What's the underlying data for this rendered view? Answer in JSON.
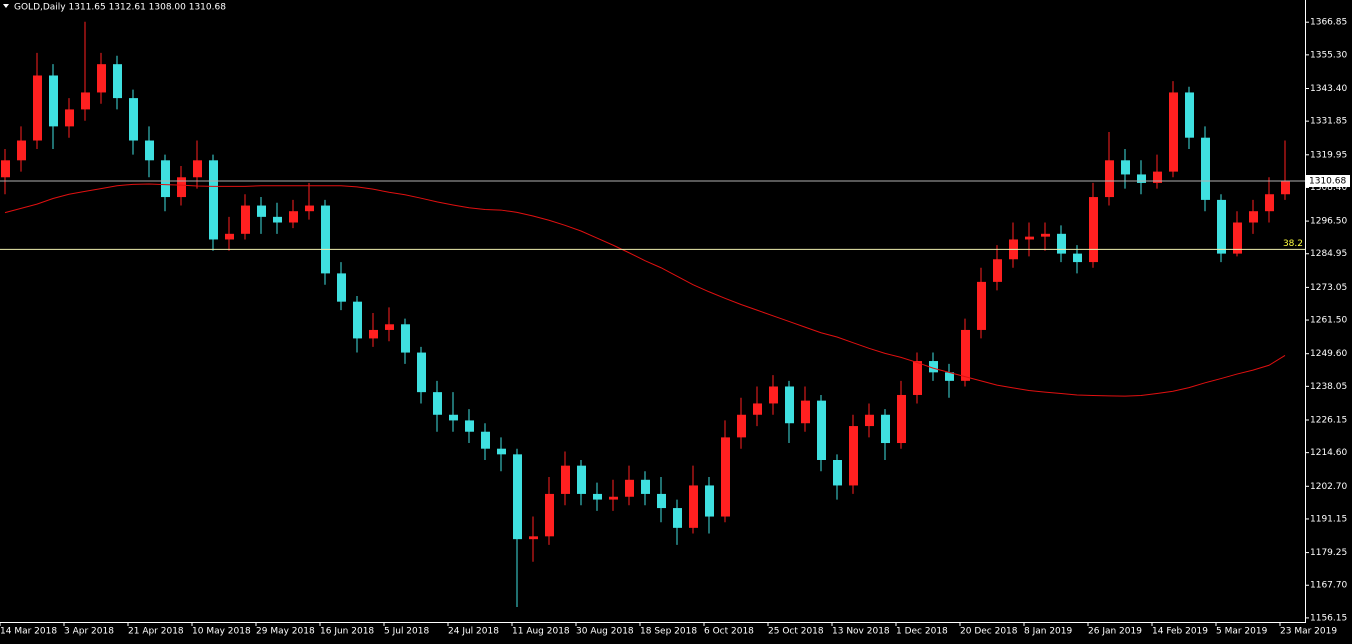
{
  "chart_data": {
    "type": "candlestick",
    "title": "GOLD,Daily  1311.65 1312.61 1308.00 1310.68",
    "categories": [
      "14 Mar 2018",
      null,
      null,
      null,
      "3 Apr 2018",
      null,
      null,
      null,
      "21 Apr 2018",
      null,
      null,
      null,
      "10 May 2018",
      null,
      null,
      null,
      "29 May 2018",
      null,
      null,
      null,
      "16 Jun 2018",
      null,
      null,
      null,
      "5 Jul 2018",
      null,
      null,
      null,
      "24 Jul 2018",
      null,
      null,
      null,
      "11 Aug 2018",
      null,
      null,
      null,
      "30 Aug 2018",
      null,
      null,
      null,
      "18 Sep 2018",
      null,
      null,
      null,
      "6 Oct 2018",
      null,
      null,
      null,
      "25 Oct 2018",
      null,
      null,
      null,
      "13 Nov 2018",
      null,
      null,
      null,
      "1 Dec 2018",
      null,
      null,
      null,
      "20 Dec 2018",
      null,
      null,
      null,
      "8 Jan 2019",
      null,
      null,
      null,
      "26 Jan 2019",
      null,
      null,
      null,
      "14 Feb 2019",
      null,
      null,
      null,
      "5 Mar 2019",
      null,
      null,
      null,
      "23 Mar 2019"
    ],
    "open": [
      1312,
      1318,
      1325,
      1348,
      1330,
      1336,
      1342,
      1352,
      1340,
      1325,
      1318,
      1305,
      1312,
      1318,
      1290,
      1292,
      1302,
      1298,
      1296,
      1300,
      1302,
      1278,
      1268,
      1255,
      1258,
      1260,
      1250,
      1236,
      1228,
      1226,
      1222,
      1216,
      1214,
      1184,
      1185,
      1200,
      1210,
      1200,
      1198,
      1199,
      1205,
      1200,
      1195,
      1188,
      1203,
      1192,
      1220,
      1228,
      1232,
      1238,
      1225,
      1233,
      1212,
      1203,
      1224,
      1228,
      1218,
      1235,
      1247,
      1243,
      1240,
      1258,
      1275,
      1283,
      1290,
      1291,
      1292,
      1285,
      1282,
      1305,
      1318,
      1313,
      1310,
      1314,
      1342,
      1326,
      1304,
      1285,
      1296,
      1300,
      1306
    ],
    "high": [
      1322,
      1330,
      1356,
      1352,
      1340,
      1367,
      1356,
      1355,
      1343,
      1330,
      1320,
      1316,
      1325,
      1320,
      1298,
      1306,
      1305,
      1303,
      1304,
      1310,
      1304,
      1282,
      1270,
      1264,
      1266,
      1262,
      1252,
      1240,
      1236,
      1230,
      1225,
      1220,
      1216,
      1192,
      1206,
      1215,
      1212,
      1204,
      1205,
      1210,
      1208,
      1206,
      1198,
      1210,
      1206,
      1226,
      1234,
      1238,
      1242,
      1240,
      1238,
      1235,
      1214,
      1228,
      1232,
      1230,
      1240,
      1250,
      1250,
      1246,
      1262,
      1280,
      1288,
      1296,
      1296,
      1296,
      1295,
      1288,
      1310,
      1328,
      1322,
      1318,
      1320,
      1346,
      1344,
      1330,
      1306,
      1300,
      1304,
      1312,
      1325
    ],
    "low": [
      1306,
      1314,
      1322,
      1322,
      1326,
      1332,
      1338,
      1336,
      1320,
      1312,
      1300,
      1302,
      1308,
      1286,
      1286,
      1290,
      1292,
      1292,
      1294,
      1297,
      1274,
      1265,
      1250,
      1252,
      1254,
      1246,
      1232,
      1222,
      1222,
      1218,
      1212,
      1208,
      1160,
      1176,
      1182,
      1196,
      1196,
      1194,
      1194,
      1196,
      1196,
      1190,
      1182,
      1186,
      1186,
      1190,
      1216,
      1224,
      1228,
      1218,
      1222,
      1208,
      1198,
      1200,
      1220,
      1212,
      1216,
      1232,
      1240,
      1234,
      1238,
      1255,
      1272,
      1280,
      1284,
      1286,
      1282,
      1278,
      1280,
      1302,
      1308,
      1306,
      1308,
      1312,
      1322,
      1300,
      1282,
      1284,
      1292,
      1296,
      1304
    ],
    "close": [
      1318,
      1325,
      1348,
      1330,
      1336,
      1342,
      1352,
      1340,
      1325,
      1318,
      1305,
      1312,
      1318,
      1290,
      1292,
      1302,
      1298,
      1296,
      1300,
      1302,
      1278,
      1268,
      1255,
      1258,
      1260,
      1250,
      1236,
      1228,
      1226,
      1222,
      1216,
      1214,
      1184,
      1185,
      1200,
      1210,
      1200,
      1198,
      1199,
      1205,
      1200,
      1195,
      1188,
      1203,
      1192,
      1220,
      1228,
      1232,
      1238,
      1225,
      1233,
      1212,
      1203,
      1224,
      1228,
      1218,
      1235,
      1247,
      1243,
      1240,
      1258,
      1275,
      1283,
      1290,
      1291,
      1292,
      1285,
      1282,
      1305,
      1318,
      1313,
      1310,
      1314,
      1342,
      1326,
      1304,
      1285,
      1296,
      1300,
      1306,
      1310.68
    ],
    "moving_average": [
      1299.5,
      1301,
      1302.5,
      1304.5,
      1306,
      1307,
      1308,
      1309,
      1309.5,
      1309.6,
      1309.4,
      1309.2,
      1308.9,
      1308.8,
      1308.8,
      1308.8,
      1309,
      1309,
      1309,
      1309,
      1309,
      1309,
      1308.6,
      1307.8,
      1306.7,
      1305.8,
      1304.6,
      1303.3,
      1302.2,
      1301.2,
      1300.6,
      1300.4,
      1299.6,
      1298.3,
      1296.8,
      1295,
      1293,
      1290.5,
      1288,
      1285.3,
      1282.5,
      1280,
      1277,
      1274,
      1271.5,
      1269.2,
      1267,
      1265,
      1263,
      1261,
      1259,
      1257,
      1255.5,
      1253.5,
      1251.5,
      1249.7,
      1248.3,
      1246.5,
      1244.5,
      1243,
      1241.5,
      1240,
      1238.5,
      1237.5,
      1236.6,
      1236,
      1235.5,
      1235,
      1234.8,
      1234.7,
      1234.6,
      1234.8,
      1235.5,
      1236.3,
      1237.6,
      1239.3,
      1240.8,
      1242.4,
      1243.8,
      1245.5,
      1249
    ],
    "up_color": "#ff2020",
    "down_color": "#3fe0e0",
    "ma_color": "#e01010",
    "ylim": [
      1154.7,
      1374.7
    ],
    "yticks": [
      1366.85,
      {
        "value": 1355.3,
        "label": "1355.30"
      },
      {
        "value": 1343.4,
        "label": "1343.40"
      },
      1331.85,
      1319.95,
      {
        "value": 1308.4,
        "label": "1308.40"
      },
      {
        "value": 1296.5,
        "label": "1296.50"
      },
      1284.95,
      1273.05,
      {
        "value": 1261.5,
        "label": "1261.50"
      },
      {
        "value": 1249.6,
        "label": "1249.60"
      },
      1238.05,
      1226.15,
      {
        "value": 1214.6,
        "label": "1214.60"
      },
      {
        "value": 1202.7,
        "label": "1202.70"
      },
      1191.15,
      1179.25,
      {
        "value": 1167.7,
        "label": "1167.70"
      },
      1156.15
    ],
    "price_line": {
      "value": 1310.68,
      "label": "1310.68"
    },
    "fib_line": {
      "value": 1286.5,
      "label": "38.2"
    }
  }
}
